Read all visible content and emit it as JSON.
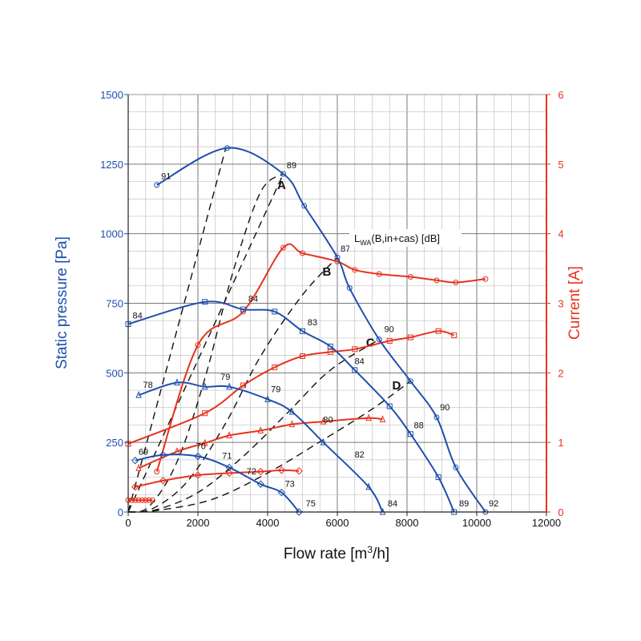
{
  "colors": {
    "pressure": "#1f4fae",
    "current": "#e8321e",
    "grid_major": "#7a7a7a",
    "grid_minor": "#c2c2c2",
    "system_line": "#111111"
  },
  "chart_data": {
    "type": "line",
    "xlabel_main": "Flow rate [m",
    "xlabel_sup": "3",
    "xlabel_end": "/h]",
    "ylabel_left": "Static pressure [Pa]",
    "ylabel_right": "Current [A]",
    "legend_main": "L",
    "legend_sub": "WA",
    "legend_rest": "(B,in+cas) [dB]",
    "xlim": [
      0,
      12000
    ],
    "ylim_left": [
      0,
      1500
    ],
    "ylim_right": [
      0,
      6
    ],
    "x_ticks": [
      "0",
      "2000",
      "4000",
      "6000",
      "8000",
      "10000",
      "12000"
    ],
    "y_left_ticks": [
      "0",
      "250",
      "500",
      "750",
      "1000",
      "1250",
      "1500"
    ],
    "y_right_ticks": [
      "0",
      "1",
      "2",
      "3",
      "4",
      "5",
      "6"
    ],
    "pressure_series": [
      {
        "marker": "circle",
        "points": [
          [
            820,
            1175
          ],
          [
            2840,
            1308
          ],
          [
            4450,
            1215
          ],
          [
            5050,
            1100
          ],
          [
            6000,
            915
          ],
          [
            6350,
            805
          ],
          [
            7200,
            620
          ],
          [
            8100,
            470
          ],
          [
            8850,
            340
          ],
          [
            9400,
            160
          ],
          [
            10250,
            0
          ]
        ]
      },
      {
        "marker": "square",
        "points": [
          [
            0,
            675
          ],
          [
            2200,
            755
          ],
          [
            3300,
            728
          ],
          [
            4200,
            720
          ],
          [
            5000,
            650
          ],
          [
            5800,
            595
          ],
          [
            6500,
            510
          ],
          [
            7500,
            380
          ],
          [
            8100,
            280
          ],
          [
            8900,
            125
          ],
          [
            9350,
            0
          ]
        ]
      },
      {
        "marker": "triangle",
        "points": [
          [
            300,
            420
          ],
          [
            1400,
            465
          ],
          [
            2200,
            450
          ],
          [
            2900,
            450
          ],
          [
            4000,
            405
          ],
          [
            4700,
            360
          ],
          [
            5600,
            250
          ],
          [
            6900,
            90
          ],
          [
            7300,
            0
          ]
        ]
      },
      {
        "marker": "diamond",
        "points": [
          [
            200,
            185
          ],
          [
            1000,
            205
          ],
          [
            2000,
            200
          ],
          [
            2900,
            160
          ],
          [
            3800,
            100
          ],
          [
            4400,
            70
          ],
          [
            4900,
            0
          ]
        ]
      }
    ],
    "current_series": [
      {
        "marker": "circle",
        "points": [
          [
            820,
            0.58
          ],
          [
            2000,
            2.4
          ],
          [
            3300,
            2.88
          ],
          [
            4450,
            3.8
          ],
          [
            5000,
            3.72
          ],
          [
            6000,
            3.6
          ],
          [
            6500,
            3.48
          ],
          [
            7200,
            3.42
          ],
          [
            8100,
            3.38
          ],
          [
            8850,
            3.33
          ],
          [
            9400,
            3.3
          ],
          [
            10250,
            3.35
          ]
        ]
      },
      {
        "marker": "square",
        "points": [
          [
            0,
            0.98
          ],
          [
            2200,
            1.42
          ],
          [
            3300,
            1.82
          ],
          [
            4200,
            2.08
          ],
          [
            5000,
            2.24
          ],
          [
            5800,
            2.3
          ],
          [
            6500,
            2.34
          ],
          [
            7500,
            2.46
          ],
          [
            8100,
            2.51
          ],
          [
            8900,
            2.6
          ],
          [
            9350,
            2.54
          ]
        ]
      },
      {
        "marker": "triangle",
        "points": [
          [
            300,
            0.63
          ],
          [
            1400,
            0.87
          ],
          [
            2200,
            0.99
          ],
          [
            2900,
            1.1
          ],
          [
            3800,
            1.17
          ],
          [
            4700,
            1.26
          ],
          [
            5600,
            1.3
          ],
          [
            6900,
            1.35
          ],
          [
            7300,
            1.33
          ]
        ]
      },
      {
        "marker": "diamond",
        "points": [
          [
            200,
            0.36
          ],
          [
            1000,
            0.45
          ],
          [
            2000,
            0.53
          ],
          [
            2900,
            0.56
          ],
          [
            3800,
            0.58
          ],
          [
            4400,
            0.6
          ],
          [
            4900,
            0.59
          ]
        ]
      },
      {
        "marker": "circle",
        "points": [
          [
            0,
            0.17
          ],
          [
            100,
            0.17
          ],
          [
            200,
            0.17
          ],
          [
            300,
            0.17
          ],
          [
            400,
            0.17
          ],
          [
            500,
            0.17
          ],
          [
            600,
            0.17
          ],
          [
            700,
            0.17
          ]
        ]
      }
    ],
    "system_lines": [
      {
        "name": "A",
        "label_at": [
          4400,
          1160
        ],
        "points": [
          [
            0,
            0
          ],
          [
            600,
            20
          ],
          [
            1400,
            180
          ],
          [
            2200,
            480
          ],
          [
            3000,
            860
          ],
          [
            3800,
            1150
          ],
          [
            4450,
            1215
          ]
        ]
      },
      {
        "name": "B",
        "label_at": [
          5700,
          850
        ],
        "points": [
          [
            0,
            0
          ],
          [
            700,
            12
          ],
          [
            1700,
            110
          ],
          [
            2800,
            320
          ],
          [
            3800,
            560
          ],
          [
            5000,
            780
          ],
          [
            6000,
            915
          ]
        ]
      },
      {
        "name": "C",
        "label_at": [
          6950,
          595
        ],
        "points": [
          [
            0,
            0
          ],
          [
            800,
            8
          ],
          [
            2000,
            70
          ],
          [
            3300,
            200
          ],
          [
            4600,
            360
          ],
          [
            5800,
            510
          ],
          [
            7200,
            620
          ]
        ]
      },
      {
        "name": "D",
        "label_at": [
          7700,
          440
        ],
        "points": [
          [
            0,
            0
          ],
          [
            800,
            5
          ],
          [
            2400,
            45
          ],
          [
            4000,
            140
          ],
          [
            5600,
            260
          ],
          [
            7000,
            370
          ],
          [
            8100,
            470
          ]
        ]
      },
      {
        "name": "",
        "points": [
          [
            0,
            0
          ],
          [
            2800,
            1308
          ]
        ]
      },
      {
        "name": "",
        "points": [
          [
            0,
            0
          ],
          [
            4450,
            1215
          ]
        ]
      }
    ],
    "sound_labels": [
      {
        "text": "91",
        "at": [
          900,
          1190
        ]
      },
      {
        "text": "89",
        "at": [
          4500,
          1230
        ]
      },
      {
        "text": "87",
        "at": [
          6050,
          930
        ]
      },
      {
        "text": "90",
        "at": [
          7300,
          640
        ]
      },
      {
        "text": "90",
        "at": [
          8900,
          360
        ]
      },
      {
        "text": "92",
        "at": [
          10300,
          15
        ]
      },
      {
        "text": "84",
        "at": [
          80,
          690
        ]
      },
      {
        "text": "84",
        "at": [
          3400,
          750
        ]
      },
      {
        "text": "83",
        "at": [
          5100,
          665
        ]
      },
      {
        "text": "84",
        "at": [
          6450,
          525
        ]
      },
      {
        "text": "88",
        "at": [
          8150,
          295
        ]
      },
      {
        "text": "89",
        "at": [
          9450,
          15
        ]
      },
      {
        "text": "78",
        "at": [
          380,
          440
        ]
      },
      {
        "text": "79",
        "at": [
          2600,
          470
        ]
      },
      {
        "text": "79",
        "at": [
          4050,
          425
        ]
      },
      {
        "text": "80",
        "at": [
          5550,
          315
        ]
      },
      {
        "text": "82",
        "at": [
          6450,
          190
        ]
      },
      {
        "text": "84",
        "at": [
          7400,
          15
        ]
      },
      {
        "text": "69",
        "at": [
          250,
          200
        ]
      },
      {
        "text": "70",
        "at": [
          1900,
          220
        ]
      },
      {
        "text": "71",
        "at": [
          2650,
          185
        ]
      },
      {
        "text": "72",
        "at": [
          3350,
          130
        ]
      },
      {
        "text": "73",
        "at": [
          4450,
          85
        ]
      },
      {
        "text": "75",
        "at": [
          5050,
          15
        ]
      }
    ]
  }
}
